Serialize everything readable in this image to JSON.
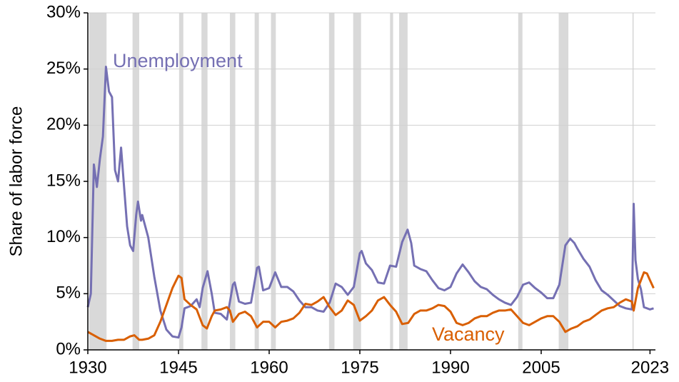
{
  "chart_data": {
    "type": "line",
    "ylabel": "Share of labor force",
    "xlim": [
      1930,
      2023.9
    ],
    "ylim": [
      0,
      30
    ],
    "xticks": [
      1930,
      1945,
      1960,
      1975,
      1990,
      2005,
      2023
    ],
    "yticks": [
      {
        "value": 0,
        "label": "0%"
      },
      {
        "value": 5,
        "label": "5%"
      },
      {
        "value": 10,
        "label": "10%"
      },
      {
        "value": 15,
        "label": "15%"
      },
      {
        "value": 20,
        "label": "20%"
      },
      {
        "value": 25,
        "label": "25%"
      },
      {
        "value": 30,
        "label": "30%"
      }
    ],
    "grid": true,
    "recessions": [
      [
        1930.2,
        1933.1
      ],
      [
        1937.4,
        1938.5
      ],
      [
        1945.1,
        1945.8
      ],
      [
        1948.8,
        1949.8
      ],
      [
        1953.5,
        1954.4
      ],
      [
        1957.6,
        1958.3
      ],
      [
        1960.3,
        1961.1
      ],
      [
        1969.9,
        1970.8
      ],
      [
        1973.9,
        1975.2
      ],
      [
        1980.0,
        1980.5
      ],
      [
        1981.5,
        1982.9
      ],
      [
        2001.2,
        2001.9
      ],
      [
        2007.9,
        2009.5
      ],
      [
        2020.1,
        2020.3
      ]
    ],
    "recession_color": "#d9d9d9",
    "series": [
      {
        "name": "Unemployment",
        "color": "#7570b3",
        "x": [
          1930,
          1930.5,
          1931,
          1931.5,
          1932,
          1932.5,
          1933,
          1933.5,
          1934,
          1934.5,
          1935,
          1935.5,
          1936,
          1936.5,
          1937,
          1937.5,
          1938,
          1938.3,
          1938.8,
          1939,
          1940,
          1941,
          1942,
          1943,
          1944,
          1945,
          1945.5,
          1946,
          1947,
          1948,
          1948.5,
          1949,
          1949.8,
          1950.5,
          1951,
          1952,
          1953,
          1954,
          1954.3,
          1955,
          1956,
          1957,
          1958,
          1958.3,
          1959,
          1960,
          1961,
          1962,
          1963,
          1964,
          1965,
          1966,
          1967,
          1968,
          1969,
          1970,
          1971,
          1972,
          1973,
          1974,
          1975,
          1975.3,
          1976,
          1977,
          1978,
          1979,
          1980,
          1981,
          1982,
          1982.9,
          1983.5,
          1984,
          1985,
          1986,
          1987,
          1988,
          1989,
          1990,
          1991,
          1992,
          1993,
          1994,
          1995,
          1996,
          1997,
          1998,
          1999,
          2000,
          2001,
          2002,
          2003,
          2004,
          2005,
          2006,
          2007,
          2008,
          2009,
          2009.8,
          2010.5,
          2011,
          2012,
          2013,
          2014,
          2015,
          2016,
          2017,
          2018,
          2019,
          2020,
          2020.3,
          2020.6,
          2021,
          2021.5,
          2022,
          2023,
          2023.6
        ],
        "values": [
          3.8,
          5,
          16.5,
          14.5,
          17,
          19,
          25.2,
          23,
          22.5,
          16,
          15,
          18,
          14.5,
          11,
          9.3,
          8.8,
          12,
          13.2,
          11.5,
          12,
          10,
          6.5,
          3.5,
          1.8,
          1.2,
          1.1,
          2,
          3.7,
          3.9,
          4.5,
          3.8,
          5.5,
          7,
          5,
          3.3,
          3.2,
          2.7,
          5.8,
          6,
          4.3,
          4.1,
          4.2,
          7.3,
          7.4,
          5.3,
          5.5,
          6.9,
          5.6,
          5.6,
          5.2,
          4.4,
          3.8,
          3.8,
          3.5,
          3.4,
          4.2,
          5.9,
          5.6,
          4.9,
          5.6,
          8.6,
          8.8,
          7.7,
          7.1,
          6.0,
          5.9,
          7.5,
          7.4,
          9.6,
          10.7,
          9.5,
          7.5,
          7.2,
          7.0,
          6.2,
          5.5,
          5.3,
          5.6,
          6.8,
          7.6,
          6.9,
          6.1,
          5.6,
          5.4,
          4.9,
          4.5,
          4.2,
          4.0,
          4.7,
          5.8,
          6.0,
          5.5,
          5.1,
          4.6,
          4.6,
          5.8,
          9.3,
          9.9,
          9.5,
          9.0,
          8.1,
          7.4,
          6.2,
          5.3,
          4.9,
          4.4,
          3.9,
          3.7,
          3.6,
          13.0,
          8.0,
          6.3,
          5.4,
          3.8,
          3.6,
          3.7
        ]
      },
      {
        "name": "Vacancy",
        "color": "#d95f02",
        "x": [
          1930,
          1931,
          1932,
          1933,
          1934,
          1935,
          1936,
          1937,
          1937.7,
          1938.5,
          1939,
          1940,
          1941,
          1942,
          1943,
          1944,
          1945,
          1945.5,
          1946,
          1947,
          1948,
          1949,
          1949.7,
          1950.5,
          1951,
          1952,
          1953,
          1953.5,
          1954,
          1955,
          1956,
          1957,
          1958,
          1959,
          1960,
          1961,
          1962,
          1963,
          1964,
          1965,
          1966,
          1967,
          1968,
          1969,
          1970,
          1971,
          1972,
          1973,
          1974,
          1975,
          1976,
          1977,
          1978,
          1979,
          1980,
          1981,
          1982,
          1983,
          1984,
          1985,
          1986,
          1987,
          1988,
          1989,
          1990,
          1991,
          1992,
          1993,
          1994,
          1995,
          1996,
          1997,
          1998,
          1999,
          2000,
          2001,
          2002,
          2003,
          2004,
          2005,
          2006,
          2007,
          2008,
          2009,
          2010,
          2011,
          2012,
          2013,
          2014,
          2015,
          2016,
          2017,
          2018,
          2019,
          2020,
          2020.3,
          2021,
          2022,
          2022.5,
          2023,
          2023.6
        ],
        "values": [
          1.6,
          1.3,
          1.0,
          0.8,
          0.8,
          0.9,
          0.9,
          1.2,
          1.3,
          0.9,
          0.9,
          1.0,
          1.3,
          2.5,
          4.0,
          5.5,
          6.6,
          6.4,
          4.5,
          4.0,
          3.6,
          2.2,
          1.9,
          3.0,
          3.5,
          3.6,
          3.8,
          3.5,
          2.5,
          3.2,
          3.4,
          3.0,
          2.0,
          2.5,
          2.5,
          2.0,
          2.5,
          2.6,
          2.8,
          3.3,
          4.1,
          4.0,
          4.3,
          4.7,
          3.8,
          3.1,
          3.5,
          4.4,
          4.0,
          2.6,
          3.0,
          3.5,
          4.4,
          4.7,
          4.0,
          3.4,
          2.3,
          2.4,
          3.2,
          3.5,
          3.5,
          3.7,
          4.0,
          3.9,
          3.4,
          2.4,
          2.2,
          2.4,
          2.8,
          3.0,
          3.0,
          3.3,
          3.5,
          3.5,
          3.6,
          3.0,
          2.4,
          2.2,
          2.5,
          2.8,
          3.0,
          3.0,
          2.5,
          1.6,
          1.9,
          2.1,
          2.5,
          2.7,
          3.1,
          3.5,
          3.7,
          3.8,
          4.2,
          4.5,
          4.3,
          3.5,
          5.5,
          6.9,
          6.8,
          6.2,
          5.5
        ]
      }
    ]
  }
}
